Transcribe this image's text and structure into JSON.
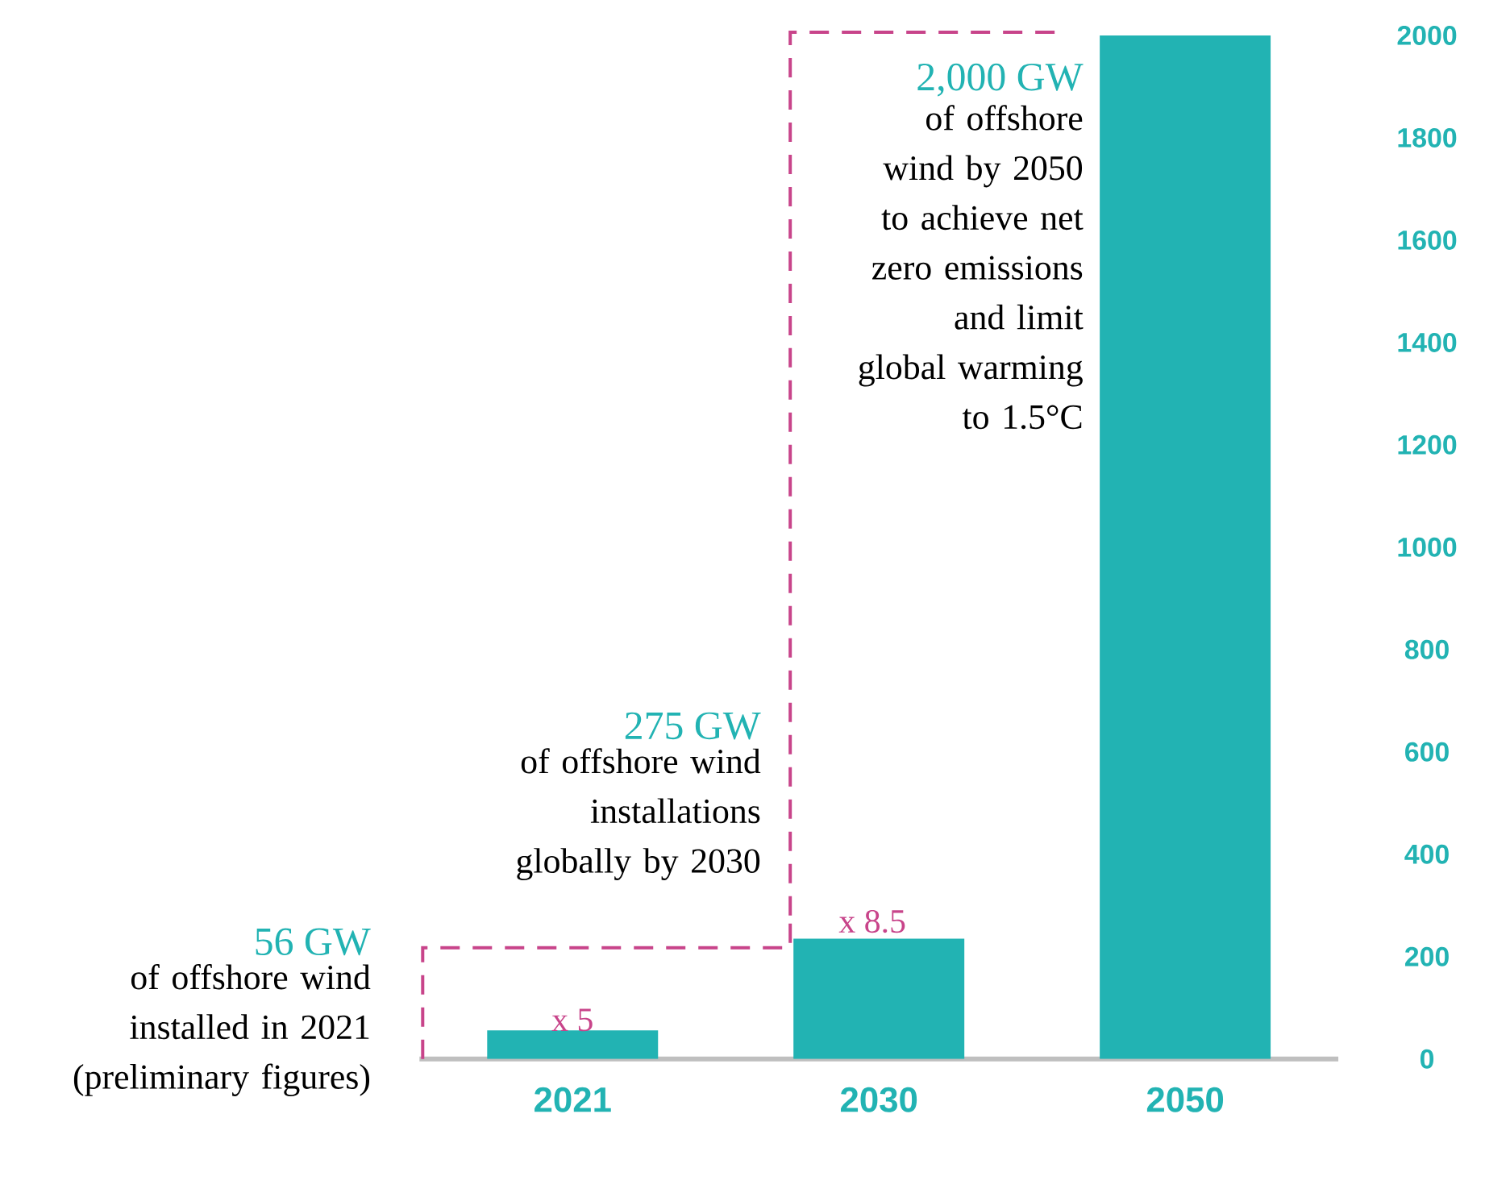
{
  "chart_data": {
    "type": "bar",
    "categories": [
      "2021",
      "2030",
      "2050"
    ],
    "values": [
      56,
      235,
      2000
    ],
    "color": "#22b3b3",
    "ylim": [
      0,
      2000
    ],
    "yticks": [
      0,
      200,
      400,
      600,
      800,
      1000,
      1200,
      1400,
      1600,
      1800,
      2000
    ],
    "annotations": [
      "56 GW",
      "of offshore wind installed in 2021 (preliminary figures)",
      "275 GW",
      "of offshore wind installations globally by 2030",
      "2,000 GW",
      "of offshore wind by 2050 to achieve net zero emissions and limit global warming to 1.5°C",
      "x 5",
      "x 8.5"
    ]
  }
}
